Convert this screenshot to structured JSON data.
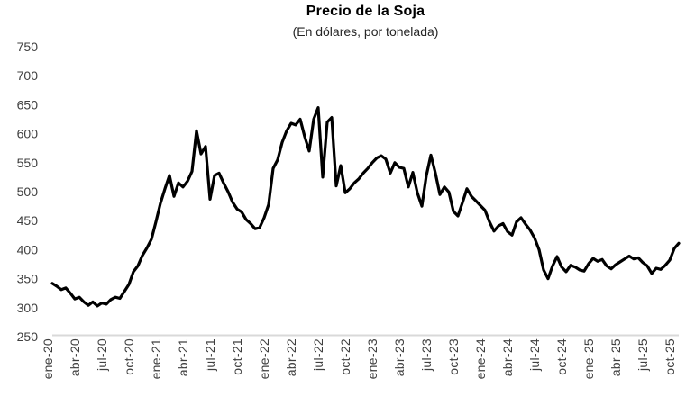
{
  "header": {
    "title": "Precio de la Soja",
    "subtitle": "(En dólares, por tonelada)"
  },
  "chart_data": {
    "type": "line",
    "title": "Precio de la Soja",
    "subtitle": "(En dólares, por tonelada)",
    "xlabel": "",
    "ylabel": "",
    "ylim": [
      250,
      750
    ],
    "y_ticks": [
      750,
      700,
      650,
      600,
      550,
      500,
      450,
      400,
      350,
      300,
      250
    ],
    "x_ticks": [
      "ene-20",
      "abr-20",
      "jul-20",
      "oct-20",
      "ene-21",
      "abr-21",
      "jul-21",
      "oct-21",
      "ene-22",
      "abr-22",
      "jul-22",
      "oct-22",
      "ene-23",
      "abr-23",
      "jul-23",
      "oct-23",
      "ene-24",
      "abr-24",
      "jul-24",
      "oct-24",
      "ene-25",
      "abr-25",
      "jul-25",
      "oct-25"
    ],
    "grid": false,
    "legend": "none",
    "line_color": "#000000",
    "axis_label_color": "#404040",
    "axis_line_color": "#d9d9d9",
    "series": [
      {
        "name": "Precio de la soja (USD por tonelada)",
        "start": "ene-20",
        "end": "oct-25",
        "points_per_month": 2,
        "values": [
          342,
          337,
          331,
          334,
          325,
          315,
          318,
          310,
          304,
          310,
          303,
          308,
          306,
          314,
          318,
          316,
          328,
          340,
          362,
          372,
          390,
          403,
          418,
          448,
          480,
          505,
          528,
          492,
          515,
          508,
          518,
          535,
          605,
          565,
          578,
          487,
          528,
          532,
          515,
          500,
          482,
          470,
          465,
          452,
          445,
          436,
          438,
          455,
          478,
          540,
          555,
          585,
          605,
          618,
          615,
          625,
          595,
          570,
          625,
          645,
          525,
          620,
          628,
          510,
          545,
          498,
          505,
          515,
          522,
          532,
          540,
          550,
          558,
          562,
          556,
          532,
          550,
          542,
          540,
          508,
          533,
          498,
          475,
          528,
          563,
          532,
          495,
          508,
          499,
          466,
          458,
          481,
          505,
          492,
          484,
          476,
          468,
          448,
          432,
          441,
          445,
          431,
          425,
          448,
          455,
          444,
          434,
          420,
          400,
          365,
          350,
          372,
          388,
          370,
          362,
          373,
          370,
          365,
          363,
          376,
          385,
          380,
          383,
          372,
          367,
          374,
          379,
          384,
          389,
          384,
          386,
          378,
          372,
          359,
          368,
          366,
          373,
          382,
          402,
          411
        ]
      }
    ]
  }
}
